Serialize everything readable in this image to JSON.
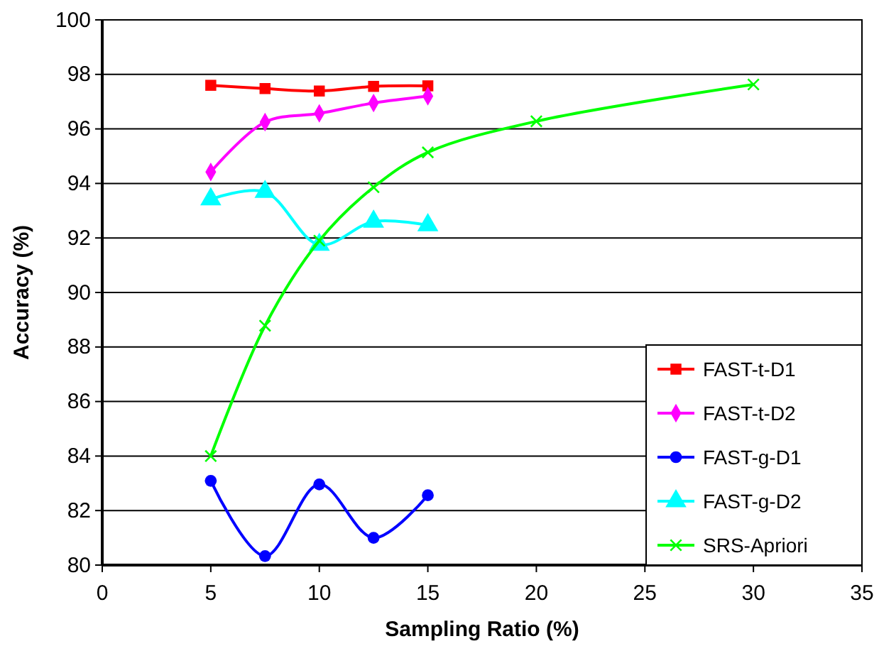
{
  "chart_data": {
    "type": "line",
    "xlabel": "Sampling Ratio (%)",
    "ylabel": "Accuracy (%)",
    "xlim": [
      0,
      35
    ],
    "xticks": [
      0,
      5,
      10,
      15,
      20,
      25,
      30,
      35
    ],
    "ylim": [
      80,
      100
    ],
    "yticks": [
      80,
      82,
      84,
      86,
      88,
      90,
      92,
      94,
      96,
      98,
      100
    ],
    "grid": "y",
    "legend": "bottom right",
    "line_style": "solid",
    "x": [
      5,
      7.5,
      10,
      12.5,
      15
    ],
    "series": [
      {
        "name": "FAST-t-D1",
        "color": "#ff0000",
        "marker": "square",
        "values": [
          97.6,
          97.48,
          97.39,
          97.56,
          97.58
        ]
      },
      {
        "name": "FAST-t-D2",
        "color": "#ff00ff",
        "marker": "diamond",
        "values": [
          94.42,
          96.25,
          96.57,
          96.95,
          97.2
        ]
      },
      {
        "name": "FAST-g-D1",
        "color": "#0000ff",
        "marker": "circle",
        "values": [
          83.09,
          80.33,
          82.96,
          81.0,
          82.56
        ]
      },
      {
        "name": "FAST-g-D2",
        "color": "#00ffff",
        "marker": "triangle",
        "values": [
          93.42,
          93.69,
          91.75,
          92.6,
          92.47
        ]
      },
      {
        "name": "SRS-Apriori",
        "color": "#00ff00",
        "marker": "cross",
        "x": [
          5,
          7.5,
          10,
          12.5,
          15,
          20,
          30
        ],
        "values": [
          84.0,
          88.78,
          91.9,
          93.86,
          95.14,
          96.28,
          97.63
        ]
      }
    ]
  }
}
